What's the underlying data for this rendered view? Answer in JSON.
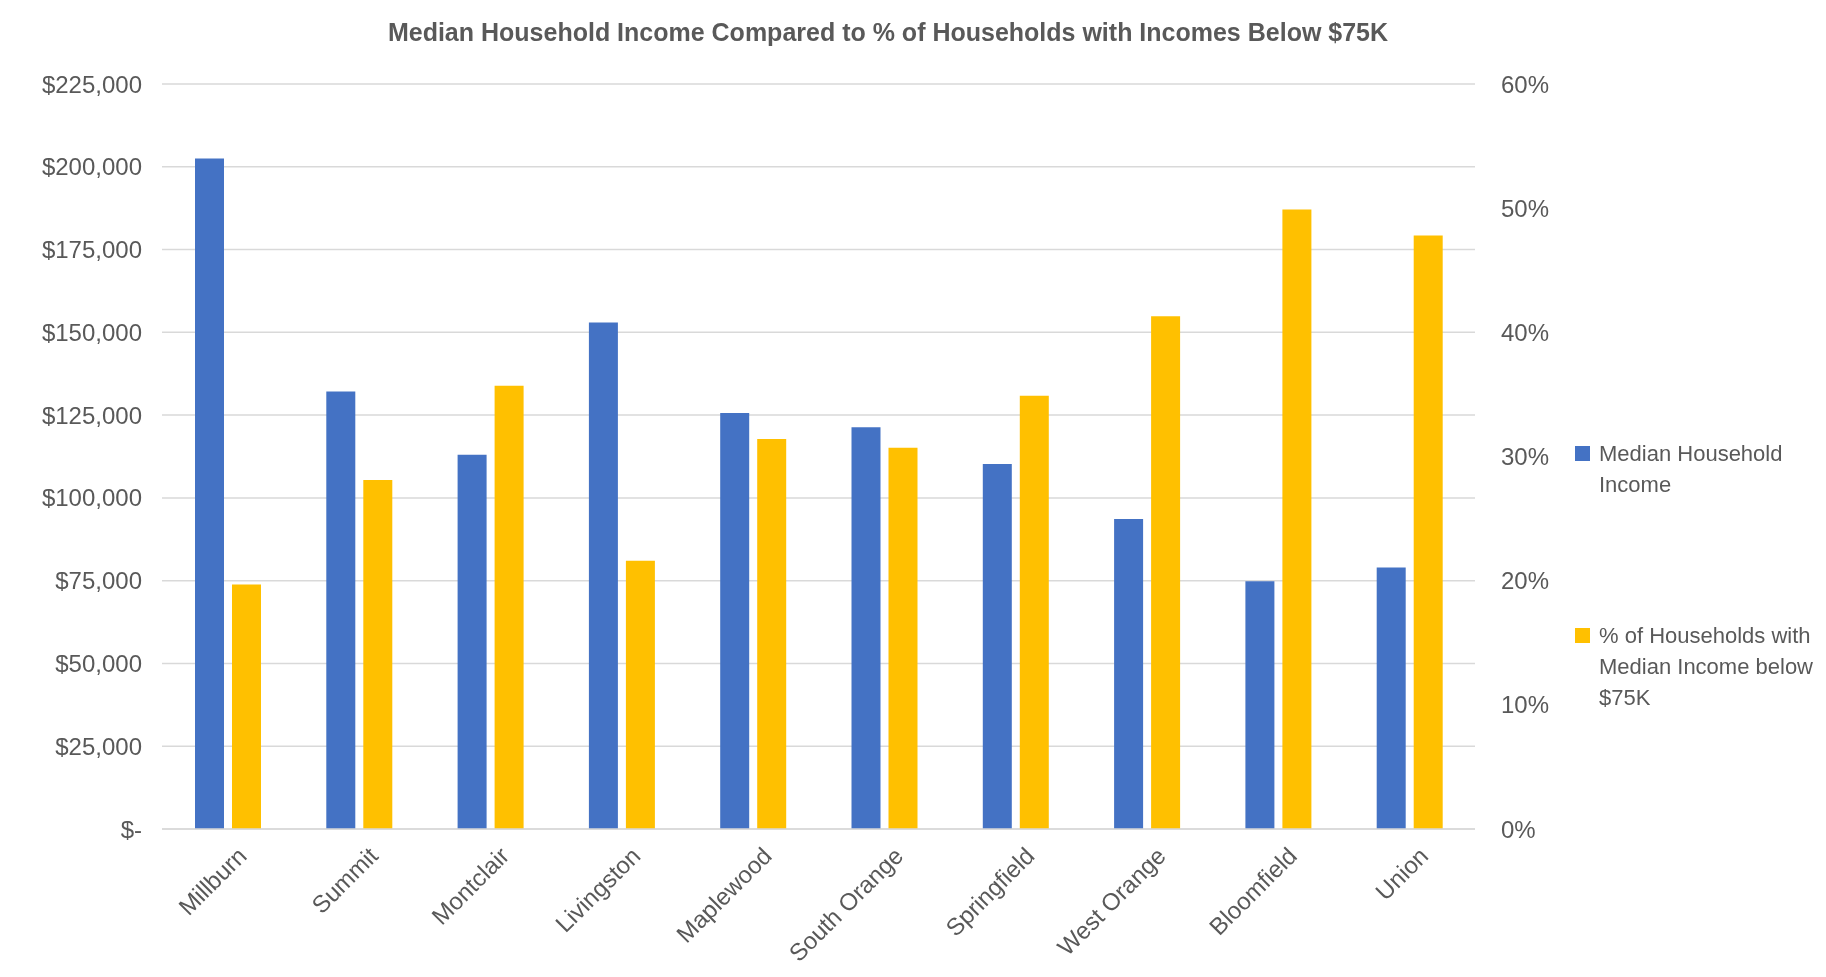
{
  "chart_data": {
    "type": "bar",
    "title": "Median Household Income Compared to % of Households with Incomes Below $75K",
    "categories": [
      "Millburn",
      "Summit",
      "Montclair",
      "Livingston",
      "Maplewood",
      "South Orange",
      "Springfield",
      "West Orange",
      "Bloomfield",
      "Union"
    ],
    "series": [
      {
        "name": "Median Household Income",
        "color": "#4472c4",
        "values": [
          202500,
          132100,
          113000,
          153000,
          125600,
          121300,
          110200,
          93600,
          74800,
          79000
        ]
      },
      {
        "name": "% of Households with Median Income below $75K",
        "color": "#ffc000",
        "axis": "y2",
        "values": [
          19.7,
          28.1,
          35.7,
          21.6,
          31.4,
          30.7,
          34.9,
          41.3,
          49.9,
          47.8
        ]
      }
    ],
    "ylim": [
      0,
      225000
    ],
    "yticks": [
      {
        "value": 0,
        "label": "$-"
      },
      {
        "value": 25000,
        "label": "$25,000"
      },
      {
        "value": 50000,
        "label": "$50,000"
      },
      {
        "value": 75000,
        "label": "$75,000"
      },
      {
        "value": 100000,
        "label": "$100,000"
      },
      {
        "value": 125000,
        "label": "$125,000"
      },
      {
        "value": 150000,
        "label": "$150,000"
      },
      {
        "value": 175000,
        "label": "$175,000"
      },
      {
        "value": 200000,
        "label": "$200,000"
      },
      {
        "value": 225000,
        "label": "$225,000"
      }
    ],
    "y2lim": [
      0,
      60
    ],
    "y2ticks": [
      {
        "value": 0,
        "label": "0%"
      },
      {
        "value": 10,
        "label": "10%"
      },
      {
        "value": 20,
        "label": "20%"
      },
      {
        "value": 30,
        "label": "30%"
      },
      {
        "value": 40,
        "label": "40%"
      },
      {
        "value": 50,
        "label": "50%"
      },
      {
        "value": 60,
        "label": "60%"
      }
    ],
    "grid": "y",
    "legend": "right"
  }
}
